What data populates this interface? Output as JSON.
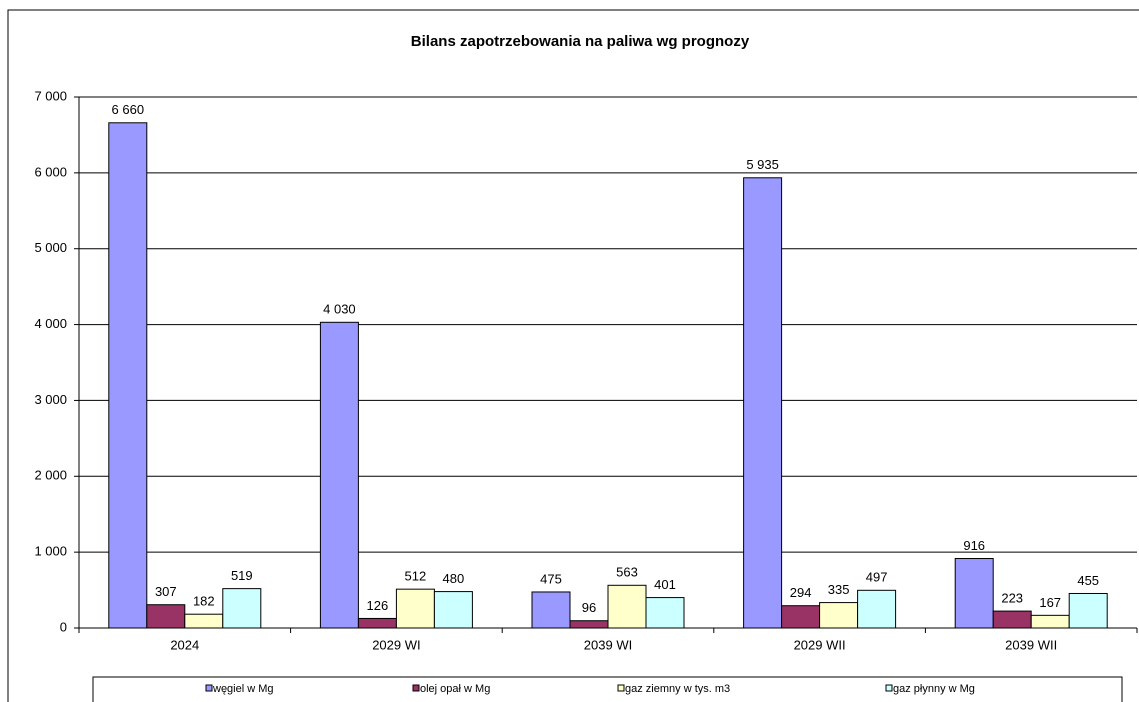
{
  "chart_data": {
    "type": "bar",
    "title": "Bilans zapotrzebowania na paliwa wg prognozy",
    "categories": [
      "2024",
      "2029 WI",
      "2039 WI",
      "2029 WII",
      "2039 WII"
    ],
    "series": [
      {
        "name": "węgiel w Mg",
        "color": "#9999ff",
        "values": [
          6660,
          4030,
          475,
          5935,
          916
        ],
        "value_labels": [
          "6 660",
          "4 030",
          "475",
          "5 935",
          "916"
        ]
      },
      {
        "name": "olej opał w Mg",
        "color": "#993366",
        "values": [
          307,
          126,
          96,
          294,
          223
        ]
      },
      {
        "name": "gaz ziemny w tys. m3",
        "color": "#ffffcc",
        "values": [
          182,
          512,
          563,
          335,
          167
        ]
      },
      {
        "name": "gaz płynny w Mg",
        "color": "#ccffff",
        "values": [
          519,
          480,
          401,
          497,
          455
        ]
      }
    ],
    "ylim": [
      0,
      7000
    ],
    "yticks": [
      0,
      {
        "value": 1000,
        "label": "1 000"
      },
      {
        "value": 2000,
        "label": "2 000"
      },
      {
        "value": 3000,
        "label": "3 000"
      },
      {
        "value": 4000,
        "label": "4 000"
      },
      {
        "value": 5000,
        "label": "5 000"
      },
      {
        "value": 6000,
        "label": "6 000"
      },
      {
        "value": 7000,
        "label": "7 000"
      }
    ],
    "grid": true,
    "legend": "bottom"
  }
}
